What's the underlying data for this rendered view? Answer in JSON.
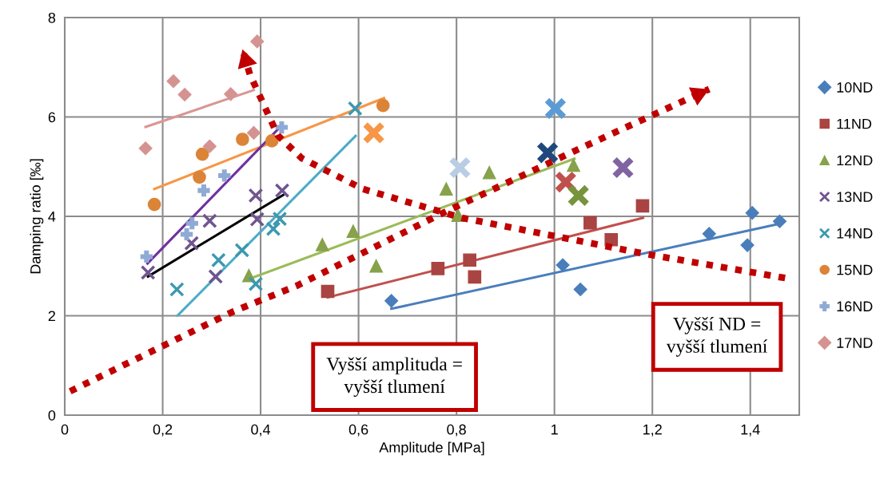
{
  "chart_data": {
    "type": "scatter",
    "xlabel": "Amplitude [MPa]",
    "ylabel": "Damping ratio [‰]",
    "xlim": [
      0,
      1.5
    ],
    "ylim": [
      0,
      8
    ],
    "xticks": [
      0,
      {
        "value": 0.2,
        "label": "0,2"
      },
      {
        "value": 0.4,
        "label": "0,4"
      },
      {
        "value": 0.6,
        "label": "0,6"
      },
      {
        "value": 0.8,
        "label": "0,8"
      },
      1,
      {
        "value": 1.2,
        "label": "1,2"
      },
      {
        "value": 1.4,
        "label": "1,4"
      }
    ],
    "yticks": [
      0,
      2,
      4,
      6,
      8
    ],
    "grid": true,
    "legend": "right",
    "annotations": [
      "Vyšší amplituda =\nvyšší tlumení",
      "Vyšší ND =\nvyšší tlumení"
    ],
    "series": [
      {
        "name": "10ND",
        "color": "#4a7ebb",
        "marker": "diamond",
        "x": [
          0.667,
          1.017,
          1.053,
          1.316,
          1.394,
          1.404,
          1.46
        ],
        "values": [
          2.3,
          3.02,
          2.53,
          3.65,
          3.42,
          4.07,
          3.9
        ]
      },
      {
        "name": "11ND",
        "color": "#a94442",
        "marker": "square",
        "x": [
          0.537,
          0.762,
          0.827,
          0.837,
          1.073,
          1.116,
          1.18
        ],
        "values": [
          2.49,
          2.95,
          3.12,
          2.78,
          3.87,
          3.53,
          4.21
        ]
      },
      {
        "name": "12ND",
        "color": "#87a24a",
        "marker": "triangle",
        "x": [
          0.376,
          0.526,
          0.589,
          0.636,
          0.779,
          0.803,
          0.867,
          1.039
        ],
        "values": [
          2.81,
          3.43,
          3.7,
          3.0,
          4.55,
          4.02,
          4.88,
          5.03
        ]
      },
      {
        "name": "13ND",
        "color": "#6f5590",
        "marker": "cross",
        "x": [
          0.17,
          0.259,
          0.296,
          0.308,
          0.39,
          0.393,
          0.444
        ],
        "values": [
          2.87,
          3.46,
          3.91,
          2.79,
          4.42,
          3.94,
          4.52
        ]
      },
      {
        "name": "14ND",
        "color": "#3c98b0",
        "marker": "cross",
        "x": [
          0.229,
          0.314,
          0.362,
          0.39,
          0.426,
          0.439,
          0.593
        ],
        "values": [
          2.53,
          3.12,
          3.32,
          2.64,
          3.75,
          3.95,
          6.17
        ]
      },
      {
        "name": "15ND",
        "color": "#db8438",
        "marker": "circle",
        "x": [
          0.183,
          0.275,
          0.281,
          0.363,
          0.423,
          0.65
        ],
        "values": [
          4.24,
          4.79,
          5.25,
          5.55,
          5.52,
          6.23
        ]
      },
      {
        "name": "16ND",
        "color": "#8faad4",
        "marker": "plus",
        "x": [
          0.167,
          0.249,
          0.26,
          0.284,
          0.326,
          0.443
        ],
        "values": [
          3.19,
          3.64,
          3.86,
          4.52,
          4.82,
          5.79
        ]
      },
      {
        "name": "17ND",
        "color": "#d49391",
        "marker": "diamond",
        "x": [
          0.165,
          0.222,
          0.245,
          0.339,
          0.296,
          0.386,
          0.393
        ],
        "values": [
          5.37,
          6.72,
          6.45,
          6.46,
          5.41,
          5.68,
          7.52
        ]
      },
      {
        "marker": "cross",
        "colors": [
          "#5b9bd5",
          "#1f497d",
          "#b9cde5",
          "#f79646",
          "#c0504d",
          "#77933c",
          "#8064a2"
        ],
        "x": [
          1.002,
          0.986,
          0.807,
          0.631,
          1.023,
          1.049,
          1.14
        ],
        "values": [
          6.17,
          5.28,
          4.98,
          5.68,
          4.69,
          4.42,
          4.98
        ]
      },
      {
        "type": "line",
        "color": "#4a7ebb",
        "x": [
          0.667,
          1.463
        ],
        "values": [
          2.14,
          3.86
        ]
      },
      {
        "type": "line",
        "color": "#c0504d",
        "x": [
          0.537,
          1.181
        ],
        "values": [
          2.37,
          3.97
        ]
      },
      {
        "type": "line",
        "color": "#9bbb59",
        "x": [
          0.376,
          1.041
        ],
        "values": [
          2.74,
          5.16
        ]
      },
      {
        "type": "line",
        "color": "#000000",
        "x": [
          0.17,
          0.446
        ],
        "values": [
          2.79,
          4.43
        ]
      },
      {
        "type": "line",
        "color": "#4bacc6",
        "x": [
          0.231,
          0.594
        ],
        "values": [
          2.01,
          5.62
        ]
      },
      {
        "type": "line",
        "color": "#f79646",
        "x": [
          0.183,
          0.652
        ],
        "values": [
          4.55,
          6.38
        ]
      },
      {
        "type": "line",
        "color": "#7030a0",
        "x": [
          0.169,
          0.444
        ],
        "values": [
          3.05,
          5.84
        ]
      },
      {
        "type": "line",
        "color": "#d99694",
        "x": [
          0.165,
          0.386
        ],
        "values": [
          5.8,
          6.54
        ]
      },
      {
        "type": "line",
        "color": "#c00000",
        "line_style": "dotted",
        "x": [
          0.011,
          0.345,
          0.473,
          0.779,
          1.04,
          1.316
        ],
        "values": [
          0.48,
          2.09,
          2.6,
          4.1,
          5.31,
          6.56
        ]
      },
      {
        "type": "line",
        "color": "#c00000",
        "line_style": "dotted",
        "x": [
          1.471,
          1.188,
          0.811,
          0.609,
          0.484,
          0.435,
          0.378,
          0.363
        ],
        "values": [
          2.76,
          3.24,
          3.97,
          4.55,
          5.17,
          5.63,
          6.86,
          7.36
        ]
      }
    ]
  }
}
